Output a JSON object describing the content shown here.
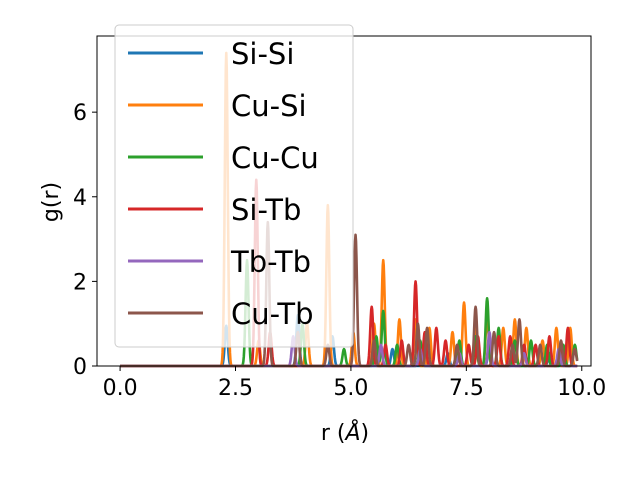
{
  "chart_data": {
    "type": "line",
    "title": "",
    "xlabel": "r ($\\AA$)",
    "xlabel_text": "r (",
    "xlabel_unit": "Å",
    "xlabel_close": ")",
    "ylabel": "g(r)",
    "xlim": [
      -0.5,
      10.2
    ],
    "ylim": [
      0,
      7.8
    ],
    "xticks": [
      0.0,
      2.5,
      5.0,
      7.5,
      10.0
    ],
    "xtick_labels": [
      "0.0",
      "2.5",
      "5.0",
      "7.5",
      "10.0"
    ],
    "yticks": [
      0,
      2,
      4,
      6
    ],
    "ytick_labels": [
      "0",
      "2",
      "4",
      "6"
    ],
    "grid": false,
    "legend_position": "upper-left",
    "series": [
      {
        "name": "Si-Si",
        "color": "#1f77b4",
        "peaks": [
          [
            2.3,
            0.95
          ],
          [
            3.85,
            1.2
          ],
          [
            4.6,
            0.7
          ],
          [
            5.9,
            0.4
          ],
          [
            7.1,
            0.3
          ],
          [
            8.0,
            0.5
          ],
          [
            9.3,
            0.3
          ]
        ]
      },
      {
        "name": "Cu-Si",
        "color": "#ff7f0e",
        "peaks": [
          [
            2.3,
            7.4
          ],
          [
            3.0,
            0.6
          ],
          [
            4.05,
            1.0
          ],
          [
            4.5,
            3.8
          ],
          [
            5.05,
            0.8
          ],
          [
            5.5,
            1.0
          ],
          [
            5.7,
            2.5
          ],
          [
            6.05,
            1.1
          ],
          [
            6.4,
            1.1
          ],
          [
            6.7,
            0.9
          ],
          [
            7.2,
            0.8
          ],
          [
            7.45,
            1.5
          ],
          [
            7.7,
            0.9
          ],
          [
            7.95,
            1.2
          ],
          [
            8.3,
            0.9
          ],
          [
            8.55,
            1.1
          ],
          [
            8.8,
            0.9
          ],
          [
            9.15,
            0.6
          ],
          [
            9.45,
            0.9
          ],
          [
            9.75,
            0.9
          ]
        ]
      },
      {
        "name": "Cu-Cu",
        "color": "#2ca02c",
        "peaks": [
          [
            2.75,
            2.5
          ],
          [
            3.95,
            1.0
          ],
          [
            4.85,
            0.4
          ],
          [
            5.55,
            0.7
          ],
          [
            5.7,
            1.3
          ],
          [
            6.0,
            0.5
          ],
          [
            6.5,
            0.6
          ],
          [
            7.35,
            0.6
          ],
          [
            7.7,
            0.7
          ],
          [
            7.95,
            1.6
          ],
          [
            8.2,
            0.9
          ],
          [
            8.55,
            0.6
          ],
          [
            8.9,
            0.6
          ],
          [
            9.25,
            0.5
          ],
          [
            9.6,
            0.5
          ],
          [
            9.85,
            0.5
          ]
        ]
      },
      {
        "name": "Si-Tb",
        "color": "#d62728",
        "peaks": [
          [
            2.95,
            4.4
          ],
          [
            3.25,
            0.8
          ],
          [
            5.45,
            1.4
          ],
          [
            5.75,
            0.5
          ],
          [
            6.1,
            0.6
          ],
          [
            6.4,
            2.0
          ],
          [
            6.6,
            0.8
          ],
          [
            6.85,
            0.9
          ],
          [
            7.05,
            0.6
          ],
          [
            7.55,
            0.5
          ],
          [
            7.75,
            0.7
          ],
          [
            8.2,
            0.7
          ],
          [
            8.45,
            0.7
          ],
          [
            8.75,
            0.5
          ],
          [
            9.0,
            0.5
          ],
          [
            9.3,
            0.7
          ],
          [
            9.55,
            0.5
          ],
          [
            9.7,
            0.9
          ]
        ]
      },
      {
        "name": "Tb-Tb",
        "color": "#9467bd",
        "peaks": [
          [
            3.75,
            0.7
          ],
          [
            5.65,
            0.5
          ],
          [
            6.5,
            0.4
          ],
          [
            7.35,
            0.3
          ],
          [
            8.0,
            0.8
          ],
          [
            8.75,
            0.3
          ],
          [
            9.5,
            0.4
          ]
        ]
      },
      {
        "name": "Cu-Tb",
        "color": "#8c564b",
        "peaks": [
          [
            3.2,
            3.4
          ],
          [
            3.85,
            0.8
          ],
          [
            4.5,
            0.5
          ],
          [
            5.1,
            3.1
          ],
          [
            5.5,
            0.6
          ],
          [
            6.25,
            0.5
          ],
          [
            6.45,
            1.0
          ],
          [
            6.65,
            0.9
          ],
          [
            7.3,
            0.5
          ],
          [
            7.7,
            1.4
          ],
          [
            8.1,
            0.8
          ],
          [
            8.5,
            0.5
          ],
          [
            8.65,
            1.1
          ],
          [
            9.1,
            0.5
          ],
          [
            9.55,
            0.6
          ],
          [
            9.85,
            0.4
          ]
        ]
      }
    ]
  }
}
